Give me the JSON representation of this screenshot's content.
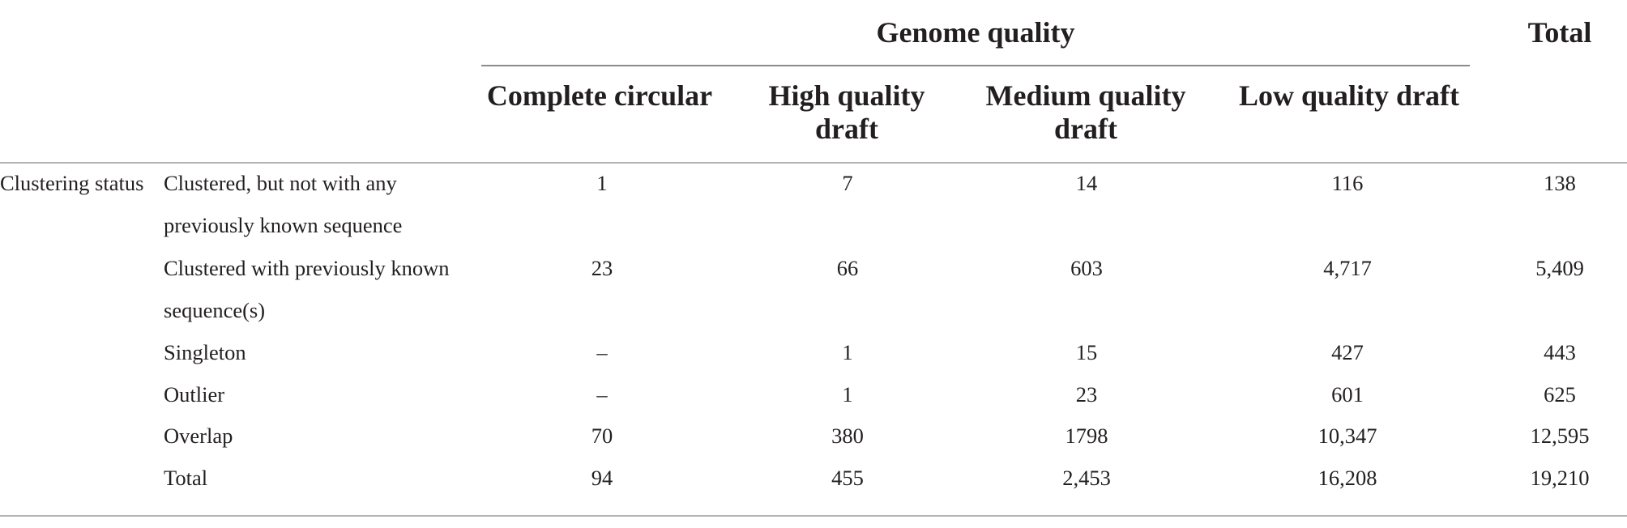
{
  "header": {
    "group_title": "Genome quality",
    "total_title": "Total",
    "columns": [
      "Complete circular",
      "High quality draft",
      "Medium quality draft",
      "Low quality draft"
    ]
  },
  "row_group_label": "Clustering status",
  "rows": [
    {
      "label": "Clustered, but not with any previously known sequence",
      "values": [
        "1",
        "7",
        "14",
        "116"
      ],
      "total": "138"
    },
    {
      "label": "Clustered with previously known sequence(s)",
      "values": [
        "23",
        "66",
        "603",
        "4,717"
      ],
      "total": "5,409"
    },
    {
      "label": "Singleton",
      "values": [
        "–",
        "1",
        "15",
        "427"
      ],
      "total": "443"
    },
    {
      "label": "Outlier",
      "values": [
        "–",
        "1",
        "23",
        "601"
      ],
      "total": "625"
    },
    {
      "label": "Overlap",
      "values": [
        "70",
        "380",
        "1798",
        "10,347"
      ],
      "total": "12,595"
    },
    {
      "label": "Total",
      "values": [
        "94",
        "455",
        "2,453",
        "16,208"
      ],
      "total": "19,210"
    }
  ]
}
